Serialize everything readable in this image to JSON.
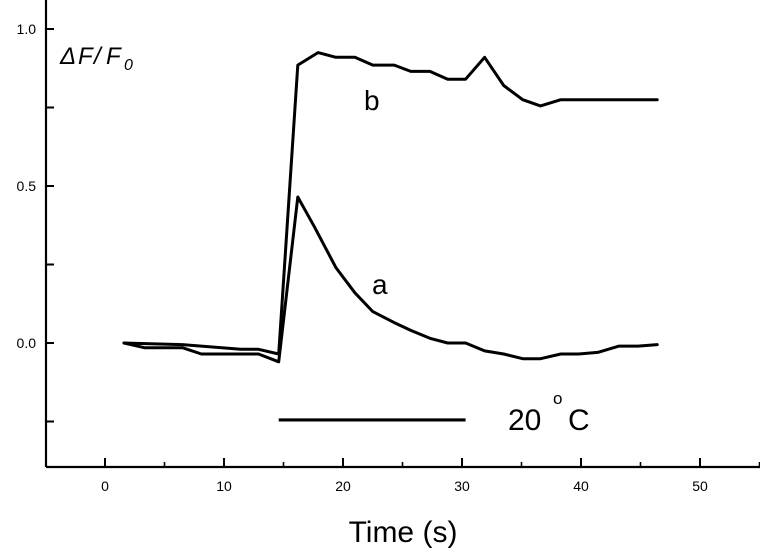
{
  "chart_data": {
    "type": "line",
    "title": "",
    "xlabel": "Time (s)",
    "ylabel_parts": {
      "delta": "Δ",
      "f": "F",
      "slash": "/",
      "f0": "F",
      "sub": "0"
    },
    "xlim": [
      -5,
      55
    ],
    "ylim": [
      -0.4,
      1.05
    ],
    "xticks": [
      0,
      10,
      20,
      30,
      40,
      50
    ],
    "xtick_labels": [
      "0",
      "10",
      "20",
      "30",
      "40",
      "50"
    ],
    "yticks": [
      0.0,
      0.25,
      0.5,
      0.75,
      1.0
    ],
    "ytick_labels": [
      "0.0",
      "",
      "0.5",
      "",
      "1.0"
    ],
    "series": [
      {
        "name": "a",
        "x": [
          1.6,
          3.3,
          6.5,
          8.1,
          9.9,
          11.4,
          12.9,
          14.6,
          16.2,
          17.6,
          19.4,
          21.0,
          22.5,
          24.3,
          25.7,
          27.3,
          28.8,
          30.3,
          31.9,
          33.5,
          35.1,
          36.6,
          38.3,
          39.8,
          41.4,
          43.2,
          44.8,
          46.4
        ],
        "y": [
          0.0,
          -0.015,
          -0.015,
          -0.035,
          -0.035,
          -0.035,
          -0.035,
          -0.06,
          0.465,
          0.37,
          0.24,
          0.16,
          0.1,
          0.065,
          0.04,
          0.015,
          0.0,
          0.0,
          -0.025,
          -0.035,
          -0.05,
          -0.05,
          -0.035,
          -0.035,
          -0.03,
          -0.01,
          -0.01,
          -0.005
        ]
      },
      {
        "name": "b",
        "x": [
          1.6,
          6.5,
          11.4,
          12.9,
          14.6,
          16.2,
          17.9,
          19.4,
          21.0,
          22.5,
          24.3,
          25.7,
          27.3,
          28.8,
          30.3,
          31.9,
          33.5,
          35.1,
          36.6,
          38.3,
          40.0,
          42.0,
          44.5,
          46.4
        ],
        "y": [
          0.0,
          -0.005,
          -0.02,
          -0.02,
          -0.035,
          0.885,
          0.925,
          0.91,
          0.91,
          0.885,
          0.885,
          0.865,
          0.865,
          0.84,
          0.84,
          0.91,
          0.82,
          0.775,
          0.755,
          0.775,
          0.775,
          0.775,
          0.775,
          0.775
        ]
      }
    ],
    "annotations": [
      {
        "text": "a",
        "x": 23.0,
        "y": 0.2
      },
      {
        "text": "b",
        "x": 22.5,
        "y": 0.77
      }
    ],
    "stimulus_bar": {
      "x_start": 14.6,
      "x_end": 30.3,
      "y": -0.245,
      "label_number": "20",
      "label_degree": "o",
      "label_unit": "C"
    }
  }
}
